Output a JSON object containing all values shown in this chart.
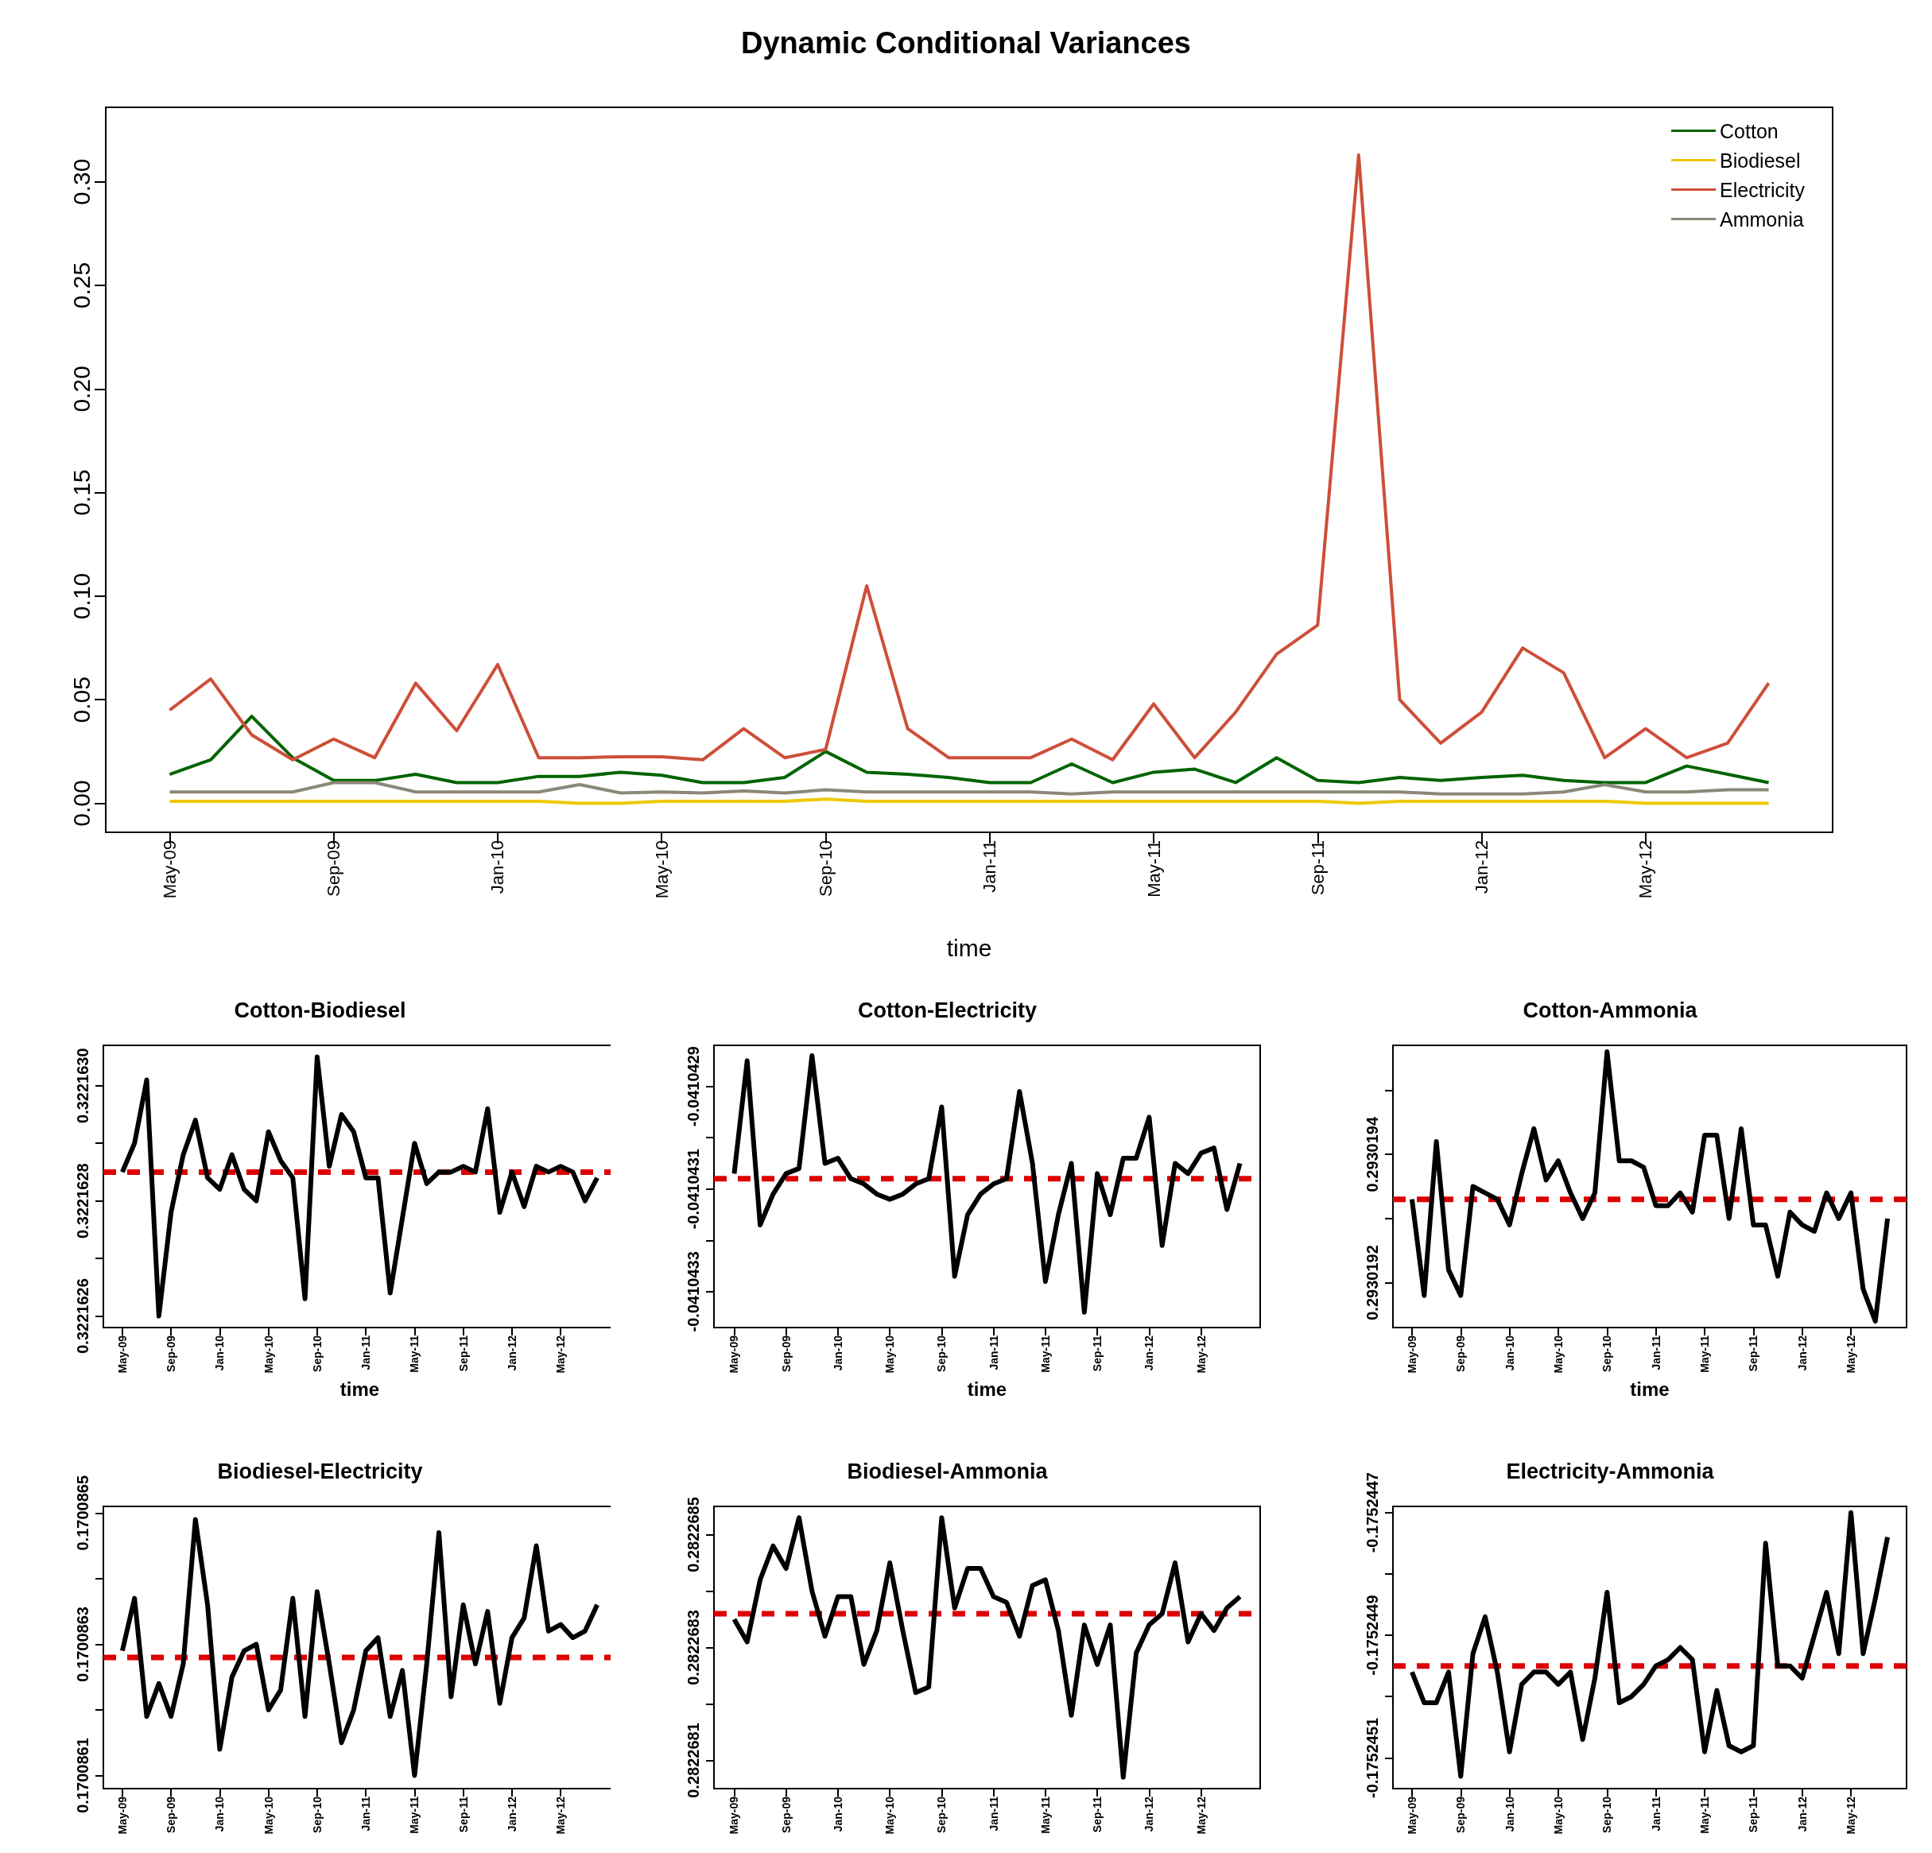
{
  "chart_data": [
    {
      "type": "line",
      "title": "Dynamic Conditional Variances",
      "xlabel": "time",
      "categories": [
        "May-09",
        null,
        null,
        null,
        "Sep-09",
        null,
        null,
        null,
        "Jan-10",
        null,
        null,
        null,
        "May-10",
        null,
        null,
        null,
        "Sep-10",
        null,
        null,
        null,
        "Jan-11",
        null,
        null,
        null,
        "May-11",
        null,
        null,
        null,
        "Sep-11",
        null,
        null,
        null,
        "Jan-12",
        null,
        null,
        null,
        "May-12",
        null,
        null,
        null
      ],
      "ylim": [
        -0.014,
        0.336
      ],
      "yticks": [
        {
          "value": 0,
          "label": "0.00"
        },
        {
          "value": 0.05,
          "label": "0.05"
        },
        {
          "value": 0.1,
          "label": "0.10"
        },
        {
          "value": 0.15,
          "label": "0.15"
        },
        {
          "value": 0.2,
          "label": "0.20"
        },
        {
          "value": 0.25,
          "label": "0.25"
        },
        {
          "value": 0.3,
          "label": "0.30"
        }
      ],
      "legend": "top right",
      "series": [
        {
          "name": "Cotton",
          "color": "#006400",
          "values": [
            0.014,
            0.021,
            0.042,
            0.022,
            0.011,
            0.011,
            0.014,
            0.01,
            0.01,
            0.013,
            0.013,
            0.015,
            0.0135,
            0.01,
            0.01,
            0.0125,
            0.025,
            0.015,
            0.014,
            0.0125,
            0.01,
            0.01,
            0.019,
            0.01,
            0.015,
            0.0165,
            0.01,
            0.022,
            0.011,
            0.01,
            0.0125,
            0.011,
            0.0125,
            0.0135,
            0.011,
            0.01,
            0.01,
            0.018,
            0.014,
            0.01
          ]
        },
        {
          "name": "Biodiesel",
          "color": "#eec900",
          "values": [
            0.001,
            0.001,
            0.001,
            0.001,
            0.001,
            0.001,
            0.001,
            0.001,
            0.001,
            0.001,
            0,
            0,
            0.001,
            0.001,
            0.001,
            0.001,
            0.002,
            0.001,
            0.001,
            0.001,
            0.001,
            0.001,
            0.001,
            0.001,
            0.001,
            0.001,
            0.001,
            0.001,
            0.001,
            0,
            0.001,
            0.001,
            0.001,
            0.001,
            0.001,
            0.001,
            0,
            0,
            0,
            0
          ]
        },
        {
          "name": "Electricity",
          "color": "#cd4f39",
          "values": [
            0.045,
            0.06,
            0.033,
            0.021,
            0.031,
            0.022,
            0.058,
            0.035,
            0.067,
            0.022,
            0.022,
            0.0225,
            0.0225,
            0.021,
            0.036,
            0.022,
            0.026,
            0.105,
            0.036,
            0.022,
            0.022,
            0.022,
            0.031,
            0.021,
            0.048,
            0.022,
            0.044,
            0.072,
            0.086,
            0.313,
            0.05,
            0.029,
            0.044,
            0.075,
            0.063,
            0.022,
            0.036,
            0.022,
            0.029,
            0.058
          ]
        },
        {
          "name": "Ammonia",
          "color": "#8b8878",
          "values": [
            0.0055,
            0.0055,
            0.0055,
            0.0055,
            0.01,
            0.01,
            0.0055,
            0.0055,
            0.0055,
            0.0055,
            0.009,
            0.005,
            0.0055,
            0.005,
            0.006,
            0.005,
            0.0065,
            0.0055,
            0.0055,
            0.0055,
            0.0055,
            0.0055,
            0.0045,
            0.0055,
            0.0055,
            0.0055,
            0.0055,
            0.0055,
            0.0055,
            0.0055,
            0.0055,
            0.0045,
            0.0045,
            0.0045,
            0.0055,
            0.009,
            0.0055,
            0.0055,
            0.0065,
            0.0065
          ]
        }
      ]
    },
    {
      "type": "line",
      "title": "Cotton-Biodiesel",
      "xlabel": "time",
      "categories": [
        "May-09",
        null,
        null,
        null,
        "Sep-09",
        null,
        null,
        null,
        "Jan-10",
        null,
        null,
        null,
        "May-10",
        null,
        null,
        null,
        "Sep-10",
        null,
        null,
        null,
        "Jan-11",
        null,
        null,
        null,
        "May-11",
        null,
        null,
        null,
        "Sep-11",
        null,
        null,
        null,
        "Jan-12",
        null,
        null,
        null,
        "May-12",
        null,
        null,
        null
      ],
      "ylim": [
        0.32216258,
        0.32216307
      ],
      "yticks": [
        {
          "value": 0.3221626,
          "label": "0.3221626"
        },
        {
          "value": 0.3221627,
          "label": null
        },
        {
          "value": 0.3221628,
          "label": "0.3221628"
        },
        {
          "value": 0.3221629,
          "label": null
        },
        {
          "value": 0.322163,
          "label": "0.3221630"
        }
      ],
      "ref_lines": [
        {
          "axis": "y",
          "value": 0.32216285,
          "color": "#dd0000",
          "line_style": "dashed"
        }
      ],
      "series": [
        {
          "color": "#000000",
          "values": [
            0.32216285,
            0.3221629,
            0.32216301,
            0.3221626,
            0.32216278,
            0.32216288,
            0.32216294,
            0.32216284,
            0.32216282,
            0.32216288,
            0.32216282,
            0.3221628,
            0.32216292,
            0.32216287,
            0.32216284,
            0.32216263,
            0.32216305,
            0.32216286,
            0.32216295,
            0.32216292,
            0.32216284,
            0.32216284,
            0.32216264,
            0.32216277,
            0.3221629,
            0.32216283,
            0.32216285,
            0.32216285,
            0.32216286,
            0.32216285,
            0.32216296,
            0.32216278,
            0.32216285,
            0.32216279,
            0.32216286,
            0.32216285,
            0.32216286,
            0.32216285,
            0.3221628,
            0.32216284
          ]
        }
      ]
    },
    {
      "type": "line",
      "title": "Cotton-Electricity",
      "xlabel": "time",
      "categories": [
        "May-09",
        null,
        null,
        null,
        "Sep-09",
        null,
        null,
        null,
        "Jan-10",
        null,
        null,
        null,
        "May-10",
        null,
        null,
        null,
        "Sep-10",
        null,
        null,
        null,
        "Jan-11",
        null,
        null,
        null,
        "May-11",
        null,
        null,
        null,
        "Sep-11",
        null,
        null,
        null,
        "Jan-12",
        null,
        null,
        null,
        "May-12",
        null,
        null,
        null
      ],
      "ylim": [
        -0.04104337,
        -0.04104282
      ],
      "yticks": [
        {
          "value": -0.0410433,
          "label": "-0.0410433"
        },
        {
          "value": -0.0410432,
          "label": null
        },
        {
          "value": -0.0410431,
          "label": "-0.0410431"
        },
        {
          "value": -0.041043,
          "label": null
        },
        {
          "value": -0.0410429,
          "label": "-0.0410429"
        }
      ],
      "ref_lines": [
        {
          "axis": "y",
          "value": -0.04104308,
          "color": "#dd0000",
          "line_style": "dashed"
        }
      ],
      "series": [
        {
          "color": "#000000",
          "values": [
            -0.04104307,
            -0.04104285,
            -0.04104317,
            -0.04104311,
            -0.04104307,
            -0.04104306,
            -0.04104284,
            -0.04104305,
            -0.04104304,
            -0.04104308,
            -0.04104309,
            -0.04104311,
            -0.04104312,
            -0.04104311,
            -0.04104309,
            -0.04104308,
            -0.04104294,
            -0.04104327,
            -0.04104315,
            -0.04104311,
            -0.04104309,
            -0.04104308,
            -0.04104291,
            -0.04104305,
            -0.04104328,
            -0.04104315,
            -0.04104305,
            -0.04104334,
            -0.04104307,
            -0.04104315,
            -0.04104304,
            -0.04104304,
            -0.04104296,
            -0.04104321,
            -0.04104305,
            -0.04104307,
            -0.04104303,
            -0.04104302,
            -0.04104314,
            -0.04104305
          ]
        }
      ]
    },
    {
      "type": "line",
      "title": "Cotton-Ammonia",
      "xlabel": "time",
      "categories": [
        "May-09",
        null,
        null,
        null,
        "Sep-09",
        null,
        null,
        null,
        "Jan-10",
        null,
        null,
        null,
        "May-10",
        null,
        null,
        null,
        "Sep-10",
        null,
        null,
        null,
        "Jan-11",
        null,
        null,
        null,
        "May-11",
        null,
        null,
        null,
        "Sep-11",
        null,
        null,
        null,
        "Jan-12",
        null,
        null,
        null,
        "May-12",
        null,
        null,
        null
      ],
      "ylim": [
        0.29301913,
        0.29301957
      ],
      "yticks": [
        {
          "value": 0.2930192,
          "label": "0.2930192"
        },
        {
          "value": 0.2930193,
          "label": null
        },
        {
          "value": 0.2930194,
          "label": "0.2930194"
        },
        {
          "value": 0.2930195,
          "label": null
        }
      ],
      "ref_lines": [
        {
          "axis": "y",
          "value": 0.29301933,
          "color": "#dd0000",
          "line_style": "dashed"
        }
      ],
      "series": [
        {
          "color": "#000000",
          "values": [
            0.29301933,
            0.29301918,
            0.29301942,
            0.29301922,
            0.29301918,
            0.29301935,
            0.29301934,
            0.29301933,
            0.29301929,
            0.29301937,
            0.29301944,
            0.29301936,
            0.29301939,
            0.29301934,
            0.2930193,
            0.29301934,
            0.29301956,
            0.29301939,
            0.29301939,
            0.29301938,
            0.29301932,
            0.29301932,
            0.29301934,
            0.29301931,
            0.29301943,
            0.29301943,
            0.2930193,
            0.29301944,
            0.29301929,
            0.29301929,
            0.29301921,
            0.29301931,
            0.29301929,
            0.29301928,
            0.29301934,
            0.2930193,
            0.29301934,
            0.29301919,
            0.29301914,
            0.2930193
          ]
        }
      ]
    },
    {
      "type": "line",
      "title": "Biodiesel-Electricity",
      "categories": [
        "May-09",
        null,
        null,
        null,
        "Sep-09",
        null,
        null,
        null,
        "Jan-10",
        null,
        null,
        null,
        "May-10",
        null,
        null,
        null,
        "Sep-10",
        null,
        null,
        null,
        "Jan-11",
        null,
        null,
        null,
        "May-11",
        null,
        null,
        null,
        "Sep-11",
        null,
        null,
        null,
        "Jan-12",
        null,
        null,
        null,
        "May-12",
        null,
        null,
        null
      ],
      "ylim": [
        0.17008608,
        0.17008651
      ],
      "yticks": [
        {
          "value": 0.1700861,
          "label": "0.1700861"
        },
        {
          "value": 0.1700862,
          "label": null
        },
        {
          "value": 0.1700863,
          "label": "0.1700863"
        },
        {
          "value": 0.1700864,
          "label": null
        },
        {
          "value": 0.1700865,
          "label": "0.1700865"
        }
      ],
      "ref_lines": [
        {
          "axis": "y",
          "value": 0.17008628,
          "color": "#dd0000",
          "line_style": "dashed"
        }
      ],
      "series": [
        {
          "color": "#000000",
          "values": [
            0.17008629,
            0.17008637,
            0.17008619,
            0.17008624,
            0.17008619,
            0.17008627,
            0.17008649,
            0.17008636,
            0.17008614,
            0.17008625,
            0.17008629,
            0.1700863,
            0.1700862,
            0.17008623,
            0.17008637,
            0.17008619,
            0.17008638,
            0.17008627,
            0.17008615,
            0.1700862,
            0.17008629,
            0.17008631,
            0.17008619,
            0.17008626,
            0.1700861,
            0.17008627,
            0.17008647,
            0.17008622,
            0.17008636,
            0.17008627,
            0.17008635,
            0.17008621,
            0.17008631,
            0.17008634,
            0.17008645,
            0.17008632,
            0.17008633,
            0.17008631,
            0.17008632,
            0.17008636
          ]
        }
      ]
    },
    {
      "type": "line",
      "title": "Biodiesel-Ammonia",
      "categories": [
        "May-09",
        null,
        null,
        null,
        "Sep-09",
        null,
        null,
        null,
        "Jan-10",
        null,
        null,
        null,
        "May-10",
        null,
        null,
        null,
        "Sep-10",
        null,
        null,
        null,
        "Jan-11",
        null,
        null,
        null,
        "May-11",
        null,
        null,
        null,
        "Sep-11",
        null,
        null,
        null,
        "Jan-12",
        null,
        null,
        null,
        "May-12",
        null,
        null,
        null
      ],
      "ylim": [
        0.28226805,
        0.28226855
      ],
      "yticks": [
        {
          "value": 0.2822681,
          "label": "0.2822681"
        },
        {
          "value": 0.2822682,
          "label": null
        },
        {
          "value": 0.2822683,
          "label": "0.2822683"
        },
        {
          "value": 0.2822684,
          "label": null
        },
        {
          "value": 0.2822685,
          "label": "0.2822685"
        }
      ],
      "ref_lines": [
        {
          "axis": "y",
          "value": 0.28226836,
          "color": "#dd0000",
          "line_style": "dashed"
        }
      ],
      "series": [
        {
          "color": "#000000",
          "values": [
            0.28226835,
            0.28226831,
            0.28226842,
            0.28226848,
            0.28226844,
            0.28226853,
            0.2822684,
            0.28226832,
            0.28226839,
            0.28226839,
            0.28226827,
            0.28226833,
            0.28226845,
            0.28226833,
            0.28226822,
            0.28226823,
            0.28226853,
            0.28226837,
            0.28226844,
            0.28226844,
            0.28226839,
            0.28226838,
            0.28226832,
            0.28226841,
            0.28226842,
            0.28226833,
            0.28226818,
            0.28226834,
            0.28226827,
            0.28226834,
            0.28226807,
            0.28226829,
            0.28226834,
            0.28226836,
            0.28226845,
            0.28226831,
            0.28226836,
            0.28226833,
            0.28226837,
            0.28226839
          ]
        }
      ]
    },
    {
      "type": "line",
      "title": "Electricity-Ammonia",
      "categories": [
        "May-09",
        null,
        null,
        null,
        "Sep-09",
        null,
        null,
        null,
        "Jan-10",
        null,
        null,
        null,
        "May-10",
        null,
        null,
        null,
        "Sep-10",
        null,
        null,
        null,
        "Jan-11",
        null,
        null,
        null,
        "May-11",
        null,
        null,
        null,
        "Sep-11",
        null,
        null,
        null,
        "Jan-12",
        null,
        null,
        null,
        "May-12",
        null,
        null,
        null
      ],
      "ylim": [
        -0.17524515,
        -0.17524469
      ],
      "yticks": [
        {
          "value": -0.1752451,
          "label": "-0.1752451"
        },
        {
          "value": -0.175245,
          "label": null
        },
        {
          "value": -0.1752449,
          "label": "-0.1752449"
        },
        {
          "value": -0.1752448,
          "label": null
        },
        {
          "value": -0.1752447,
          "label": "-0.1752447"
        }
      ],
      "ref_lines": [
        {
          "axis": "y",
          "value": -0.17524495,
          "color": "#dd0000",
          "line_style": "dashed"
        }
      ],
      "series": [
        {
          "color": "#000000",
          "values": [
            -0.17524496,
            -0.17524501,
            -0.17524501,
            -0.17524496,
            -0.17524513,
            -0.17524493,
            -0.17524487,
            -0.17524496,
            -0.17524509,
            -0.17524498,
            -0.17524496,
            -0.17524496,
            -0.17524498,
            -0.17524496,
            -0.17524507,
            -0.17524497,
            -0.17524483,
            -0.17524501,
            -0.175245,
            -0.17524498,
            -0.17524495,
            -0.17524494,
            -0.17524492,
            -0.17524494,
            -0.17524509,
            -0.17524499,
            -0.17524508,
            -0.17524509,
            -0.17524508,
            -0.17524475,
            -0.17524495,
            -0.17524495,
            -0.17524497,
            -0.1752449,
            -0.17524483,
            -0.17524493,
            -0.1752447,
            -0.17524493,
            -0.17524484,
            -0.17524474
          ]
        }
      ]
    }
  ]
}
